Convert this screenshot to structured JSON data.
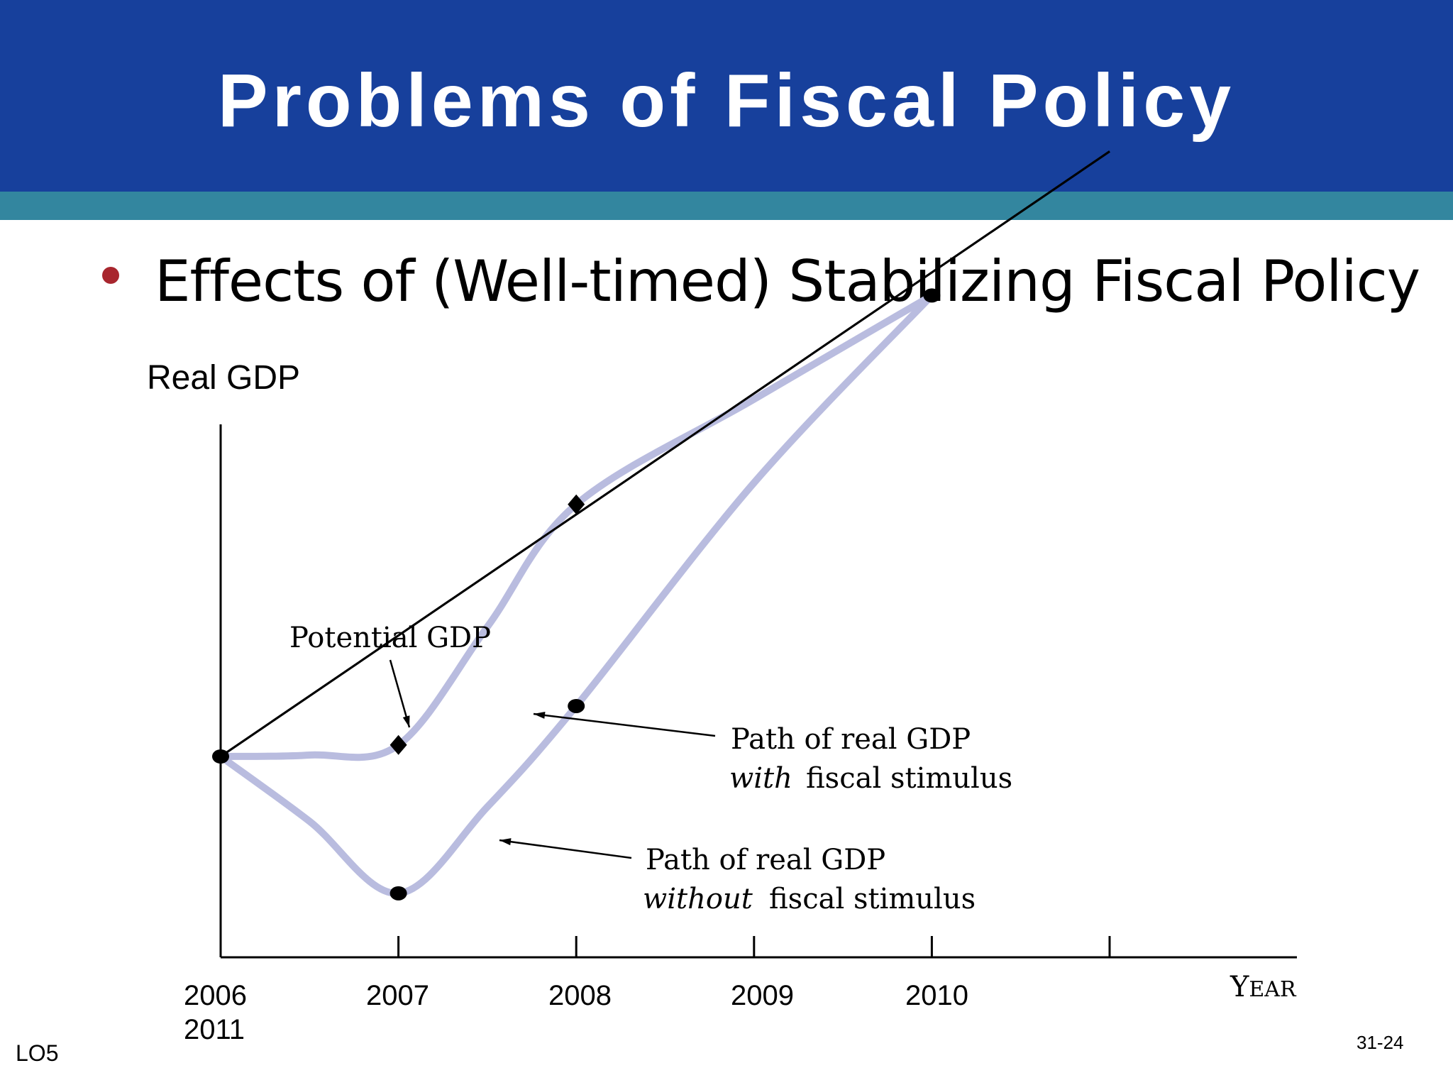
{
  "slide": {
    "title": "Problems of Fiscal Policy",
    "bullet": "Effects of (Well-timed) Stabilizing Fiscal Policy",
    "footer_left": "LO5",
    "footer_right": "31-24",
    "colors": {
      "title_bar": "#17409c",
      "accent_bar": "#33869f",
      "bullet": "#a8262e",
      "path_line": "#b9bcdf"
    }
  },
  "chart_data": {
    "type": "line",
    "ylabel": "Real GDP",
    "xlabel": "YEAR",
    "x_ticks": [
      "2006",
      "2007",
      "2008",
      "2009",
      "2010"
    ],
    "x_tick_extra": "2011",
    "xlim": [
      2006,
      2011
    ],
    "grid": false,
    "y_scale": "unlabeled",
    "series": [
      {
        "key": "potential",
        "x": [
          2006,
          2011
        ],
        "y": [
          1.0,
          5.2
        ]
      },
      {
        "key": "with",
        "x": [
          2006,
          2006.5,
          2007,
          2007.5,
          2008,
          2009,
          2010
        ],
        "y": [
          1.0,
          1.01,
          1.08,
          1.9,
          2.75,
          3.48,
          4.2
        ]
      },
      {
        "key": "without",
        "x": [
          2006,
          2006.5,
          2007,
          2007.5,
          2008,
          2009,
          2010
        ],
        "y": [
          1.0,
          0.55,
          0.05,
          0.65,
          1.35,
          2.9,
          4.2
        ]
      }
    ],
    "markers": [
      {
        "shape": "circle",
        "x": 2006,
        "y": 1.0
      },
      {
        "shape": "diamond",
        "x": 2007,
        "y": 1.08
      },
      {
        "shape": "circle",
        "x": 2007,
        "y": 0.05
      },
      {
        "shape": "diamond",
        "x": 2008,
        "y": 2.75
      },
      {
        "shape": "circle",
        "x": 2008,
        "y": 1.35
      },
      {
        "shape": "circle",
        "x": 2010,
        "y": 4.2
      }
    ],
    "annotations": [
      {
        "key": "potential",
        "lines": [
          "Potential GDP"
        ]
      },
      {
        "key": "with",
        "lines": [
          "Path of real GDP",
          "with",
          "fiscal stimulus"
        ]
      },
      {
        "key": "without",
        "lines": [
          "Path of real GDP",
          "without",
          "fiscal stimulus"
        ]
      }
    ]
  }
}
